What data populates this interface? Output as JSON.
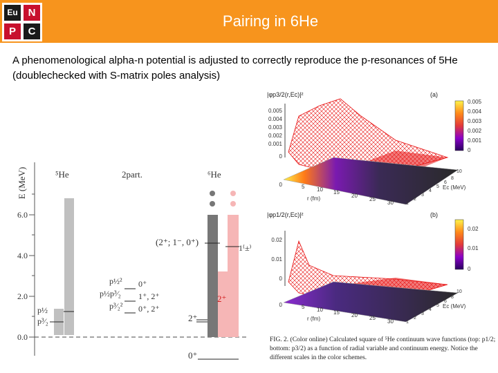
{
  "slide": {
    "title": "Pairing in 6He",
    "body": "A phenomenological alpha-n potential is adjusted to correctly reproduce the p-resonances of 5He (doublechecked with S-matrix poles analysis)"
  },
  "logo": {
    "letters": [
      "Eu",
      "N",
      "P",
      "C"
    ],
    "colors": [
      "#1a1a1a",
      "#c8102e",
      "#c8102e",
      "#1a1a1a"
    ]
  },
  "colors": {
    "header": "#f7941d",
    "dark_bar": "#777777",
    "light_bar": "#c0c0c0",
    "pink_bar": "#f6b6b6",
    "red": "#d22020"
  },
  "level_figure": {
    "y_axis_label": "E (MeV)",
    "y_ticks": [
      "0.0",
      "2.0",
      "4.0",
      "6.0"
    ],
    "col_he5": "⁵He",
    "col_2part": "2part.",
    "col_he6": "⁶He",
    "he5_labels": [
      "p½",
      "p³⁄₂"
    ],
    "twopart_config": [
      "p½²",
      "p½p³⁄₂",
      "p³⁄₂²"
    ],
    "twopart_jpi": [
      "0⁺",
      "1⁺, 2⁺",
      "0⁺, 2⁺"
    ],
    "he6_upper_label": "(2⁺; 1⁻, 0⁺)",
    "he6_right_label": "1⁽±⁾",
    "he6_red_label": "2⁺",
    "he6_2plus_label": "2⁺",
    "he6_ground_label": "0⁺"
  },
  "plot_a": {
    "z_label": "|φp3/2(r,Ec)|²",
    "panel": "(a)",
    "z_ticks": [
      "0",
      "0.001",
      "0.002",
      "0.003",
      "0.004",
      "0.005"
    ],
    "colorbar_ticks": [
      "0.005",
      "0.004",
      "0.003",
      "0.002",
      "0.001",
      "0"
    ],
    "r_ticks": [
      "0",
      "5",
      "10",
      "15",
      "20",
      "25",
      "30"
    ],
    "e_ticks": [
      "0",
      "1",
      "2",
      "3",
      "4",
      "5",
      "6",
      "7",
      "8",
      "9",
      "10"
    ],
    "r_label": "r (fm)",
    "e_label": "Ec (MeV)"
  },
  "plot_b": {
    "z_label": "|φp1/2(r,Ec)|²",
    "panel": "(b)",
    "z_ticks": [
      "0",
      "0.01",
      "0.02"
    ],
    "colorbar_ticks": [
      "0.02",
      "0.01",
      "0"
    ],
    "r_ticks": [
      "0",
      "5",
      "10",
      "15",
      "20",
      "25",
      "30"
    ],
    "e_ticks": [
      "0",
      "1",
      "2",
      "3",
      "4",
      "5",
      "6",
      "7",
      "8",
      "9",
      "10"
    ],
    "r_label": "r (fm)",
    "e_label": "Ec (MeV)"
  },
  "caption": "FIG. 2. (Color online) Calculated square of ⁵He continuum wave functions (top: p1/2; bottom: p3/2) as a function of radial variable and continuum energy. Notice the different scales in the color schemes."
}
